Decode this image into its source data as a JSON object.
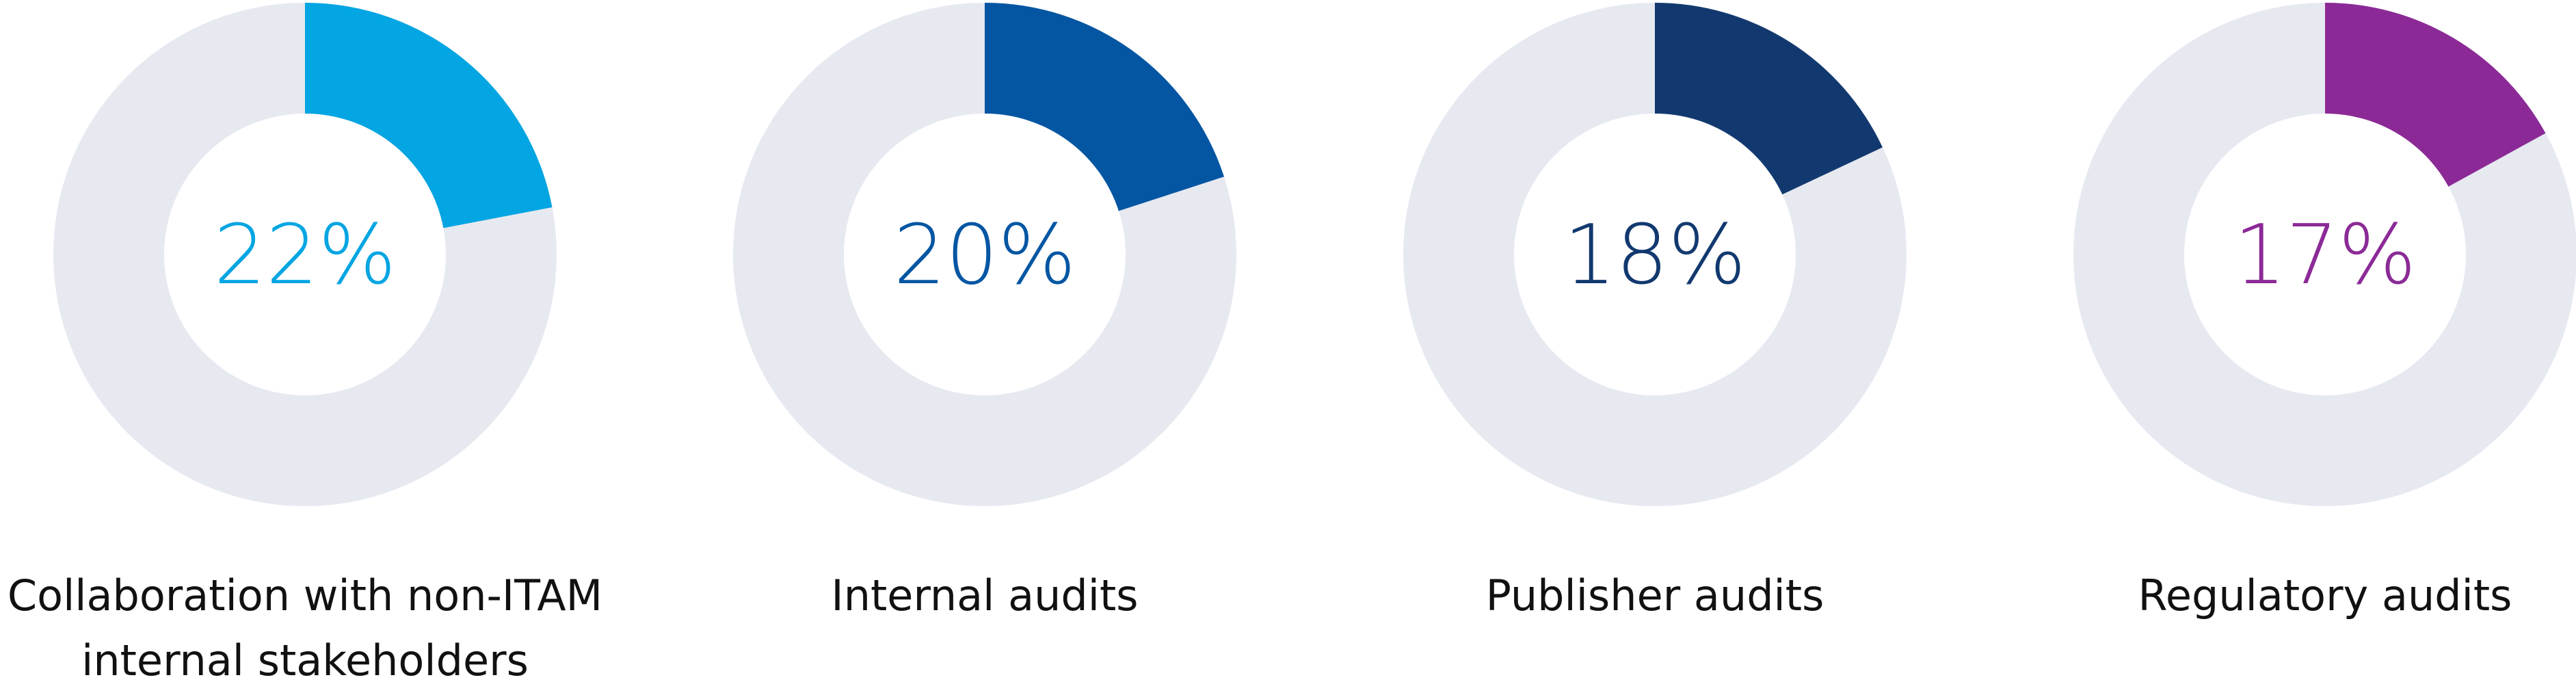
{
  "chart_data": {
    "type": "pie",
    "style": "donut",
    "track_color": "#E7E9F1",
    "items": [
      {
        "label_lines": [
          "Collaboration with non-ITAM",
          "internal stakeholders"
        ],
        "value": 22,
        "value_label": "22%",
        "color": "#03A5E2"
      },
      {
        "label_lines": [
          "Internal audits"
        ],
        "value": 20,
        "value_label": "20%",
        "color": "#0456A3"
      },
      {
        "label_lines": [
          "Publisher audits"
        ],
        "value": 18,
        "value_label": "18%",
        "color": "#12396F"
      },
      {
        "label_lines": [
          "Regulatory audits"
        ],
        "value": 17,
        "value_label": "17%",
        "color": "#8B2A96"
      }
    ]
  }
}
